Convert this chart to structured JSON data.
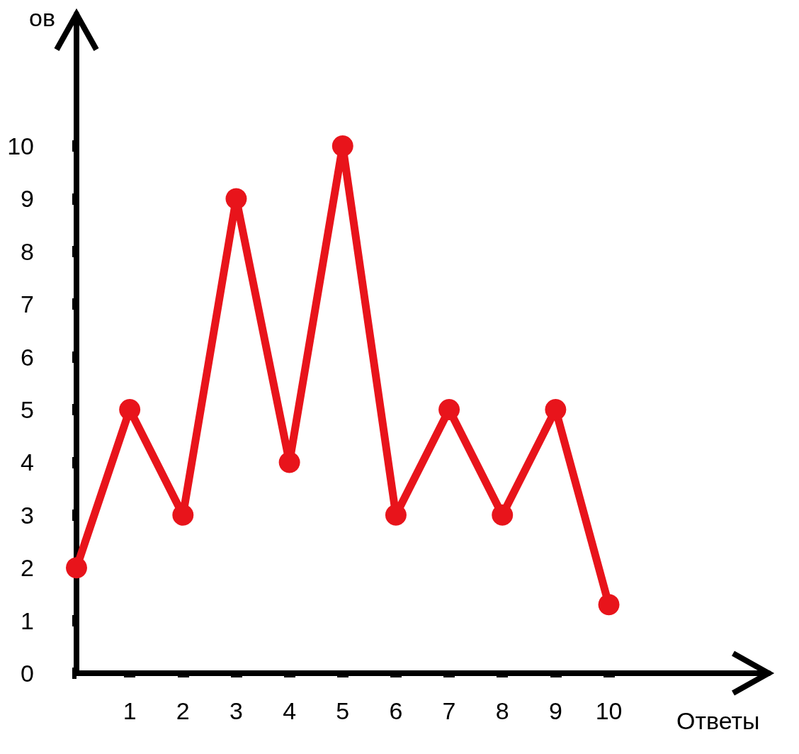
{
  "chart_data": {
    "type": "line",
    "xlabel": "Ответы",
    "ylabel": "ов",
    "x": [
      0,
      1,
      2,
      3,
      4,
      5,
      6,
      7,
      8,
      9,
      10
    ],
    "series": [
      {
        "color": "#e8141b",
        "values": [
          2,
          5,
          3,
          9,
          4,
          10,
          3,
          5,
          3,
          5,
          1.3
        ]
      }
    ],
    "xlim": [
      0,
      13
    ],
    "xticks": [
      1,
      2,
      3,
      4,
      5,
      6,
      7,
      8,
      9,
      10
    ],
    "ylim": [
      0,
      12.5
    ],
    "yticks": [
      0,
      1,
      2,
      3,
      4,
      5,
      6,
      7,
      8,
      9,
      10
    ],
    "grid": false,
    "marker": "circle",
    "line_style": "solid"
  }
}
